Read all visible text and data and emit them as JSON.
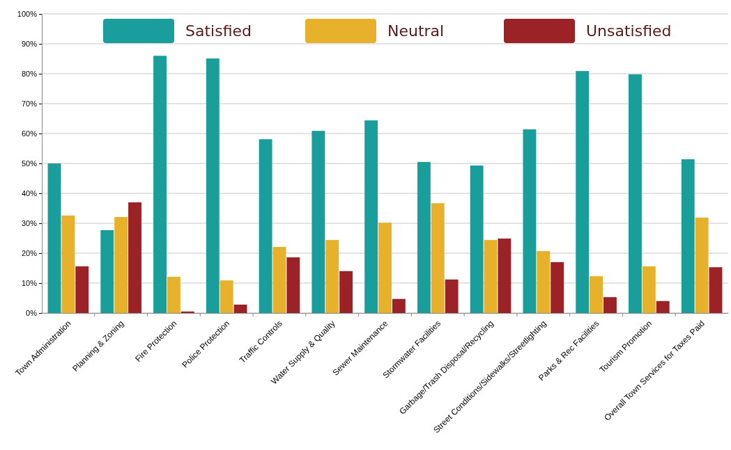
{
  "chart_data": {
    "type": "bar",
    "categories": [
      "Town Administration",
      "Planning & Zoning",
      "Fire Protection",
      "Police Protection",
      "Traffic Controls",
      "Water Supply & Quality",
      "Sewer Maintenance",
      "Stormwater Facilities",
      "Garbage/Trash Disposal/Recycling",
      "Street Conditions/Sidewalks/Streetlighting",
      "Parks & Rec Facilities",
      "Tourism Promotion",
      "Overall Town Services for Taxes Paid"
    ],
    "series": [
      {
        "name": "Satisfied",
        "color": "#1a9e9b",
        "values": [
          50.0,
          27.7,
          86.0,
          85.1,
          58.1,
          60.9,
          64.4,
          50.5,
          49.3,
          61.4,
          80.9,
          79.8,
          51.4
        ]
      },
      {
        "name": "Neutral",
        "color": "#e8b12c",
        "values": [
          32.6,
          32.1,
          12.1,
          10.9,
          22.1,
          24.4,
          30.2,
          36.7,
          24.4,
          20.7,
          12.3,
          15.6,
          31.9
        ]
      },
      {
        "name": "Unsatisfied",
        "color": "#9b2226",
        "values": [
          15.6,
          37.0,
          0.5,
          2.8,
          18.6,
          14.0,
          4.7,
          11.2,
          24.9,
          17.0,
          5.3,
          4.0,
          15.3
        ]
      }
    ],
    "ylim": [
      0,
      100
    ],
    "yticks": [
      {
        "value": 0,
        "label": "0%"
      },
      {
        "value": 10,
        "label": "10%"
      },
      {
        "value": 20,
        "label": "20%"
      },
      {
        "value": 30,
        "label": "30%"
      },
      {
        "value": 40,
        "label": "40%"
      },
      {
        "value": 50,
        "label": "50%"
      },
      {
        "value": 60,
        "label": "60%"
      },
      {
        "value": 70,
        "label": "70%"
      },
      {
        "value": 80,
        "label": "80%"
      },
      {
        "value": 90,
        "label": "90%"
      },
      {
        "value": 100,
        "label": "100%"
      }
    ],
    "grid": "y",
    "legend": "top"
  }
}
